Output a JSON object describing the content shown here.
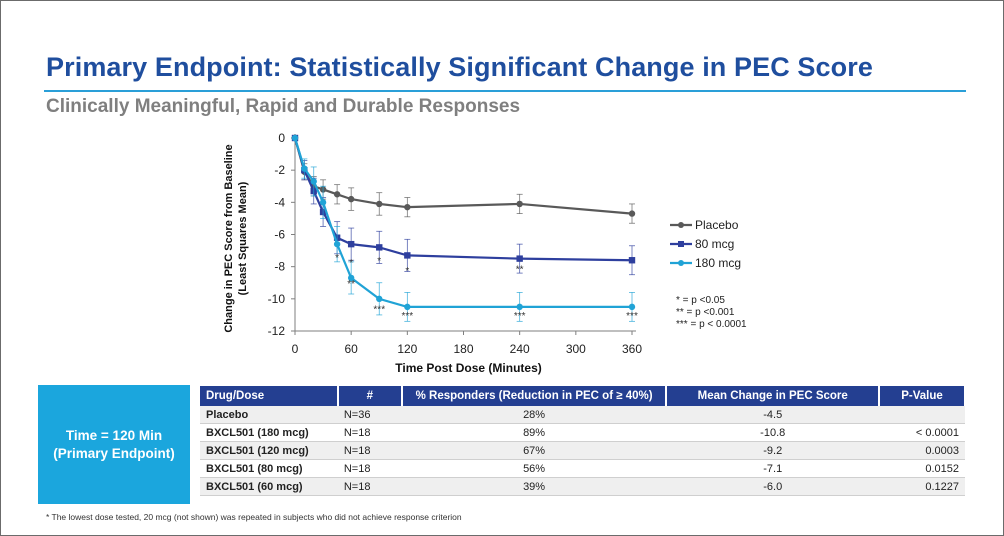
{
  "slide": {
    "title": "Primary Endpoint: Statistically Significant Change in PEC Score",
    "subtitle": "Clinically Meaningful, Rapid and Durable Responses",
    "footnote": "* The lowest dose tested, 20 mcg (not shown) was repeated in subjects who did not achieve response criterion",
    "colors": {
      "title": "#1f4e9e",
      "rule": "#2a9fd8",
      "box": "#1ba6dd",
      "header": "#243f91"
    }
  },
  "chart_data": {
    "type": "line",
    "xlabel": "Time Post Dose (Minutes)",
    "ylabel_line1": "Change in PEC Score  from Baseline",
    "ylabel_line2": "(Least Squares Mean)",
    "xlim": [
      0,
      360
    ],
    "ylim": [
      -12,
      0
    ],
    "xticks": [
      0,
      60,
      120,
      180,
      240,
      300,
      360
    ],
    "yticks": [
      0,
      -2,
      -4,
      -6,
      -8,
      -10,
      -12
    ],
    "series": [
      {
        "name": "Placebo",
        "color": "#595959",
        "marker": "circle",
        "x": [
          0,
          10,
          20,
          30,
          45,
          60,
          90,
          120,
          240,
          360
        ],
        "y": [
          0,
          -2.1,
          -3.0,
          -3.2,
          -3.5,
          -3.8,
          -4.1,
          -4.3,
          -4.1,
          -4.7
        ],
        "err": [
          0,
          0.5,
          0.6,
          0.6,
          0.6,
          0.7,
          0.7,
          0.6,
          0.6,
          0.6
        ]
      },
      {
        "name": "80 mcg",
        "color": "#2e3f9e",
        "marker": "square",
        "x": [
          0,
          10,
          20,
          30,
          45,
          60,
          90,
          120,
          240,
          360
        ],
        "y": [
          0,
          -2.0,
          -3.3,
          -4.6,
          -6.2,
          -6.6,
          -6.8,
          -7.3,
          -7.5,
          -7.6
        ],
        "err": [
          0,
          0.6,
          0.8,
          0.9,
          1.0,
          1.0,
          1.0,
          1.0,
          0.9,
          0.9
        ]
      },
      {
        "name": "180 mcg",
        "color": "#20a3d6",
        "marker": "circle",
        "x": [
          0,
          10,
          20,
          30,
          45,
          60,
          90,
          120,
          240,
          360
        ],
        "y": [
          0,
          -1.9,
          -2.7,
          -4.0,
          -6.6,
          -8.7,
          -10.0,
          -10.5,
          -10.5,
          -10.5
        ],
        "err": [
          0,
          0.6,
          0.9,
          1.0,
          1.1,
          1.0,
          1.0,
          0.9,
          0.9,
          0.9
        ]
      }
    ],
    "significance_marks": [
      {
        "x": 45,
        "y": -7.4,
        "label": "*"
      },
      {
        "x": 60,
        "y": -7.7,
        "label": "*"
      },
      {
        "x": 90,
        "y": -7.6,
        "label": "*"
      },
      {
        "x": 120,
        "y": -8.2,
        "label": "*"
      },
      {
        "x": 240,
        "y": -8.1,
        "label": "**"
      },
      {
        "x": 60,
        "y": -9.0,
        "label": "**"
      },
      {
        "x": 90,
        "y": -10.6,
        "label": "***"
      },
      {
        "x": 120,
        "y": -11.0,
        "label": "***"
      },
      {
        "x": 240,
        "y": -11.0,
        "label": "***"
      },
      {
        "x": 360,
        "y": -11.0,
        "label": "***"
      }
    ],
    "significance_legend": [
      "* = p <0.05",
      "** = p <0.001",
      "*** = p < 0.0001"
    ]
  },
  "sidebox": {
    "line1": "Time = 120 Min",
    "line2": "(Primary Endpoint)"
  },
  "table": {
    "headers": {
      "drug": "Drug/Dose",
      "n": "#",
      "responders": "% Responders (Reduction in PEC of ≥ 40%)",
      "mean": "Mean Change in PEC Score",
      "p": "P-Value"
    },
    "rows": [
      {
        "drug": "Placebo",
        "n": "N=36",
        "responders": "28%",
        "mean": "-4.5",
        "p": ""
      },
      {
        "drug": "BXCL501 (180 mcg)",
        "n": "N=18",
        "responders": "89%",
        "mean": "-10.8",
        "p": "< 0.0001"
      },
      {
        "drug": "BXCL501 (120 mcg)",
        "n": "N=18",
        "responders": "67%",
        "mean": "-9.2",
        "p": "0.0003"
      },
      {
        "drug": "BXCL501 (80 mcg)",
        "n": "N=18",
        "responders": "56%",
        "mean": "-7.1",
        "p": "0.0152"
      },
      {
        "drug": "BXCL501 (60 mcg)",
        "n": "N=18",
        "responders": "39%",
        "mean": "-6.0",
        "p": "0.1227"
      }
    ]
  }
}
